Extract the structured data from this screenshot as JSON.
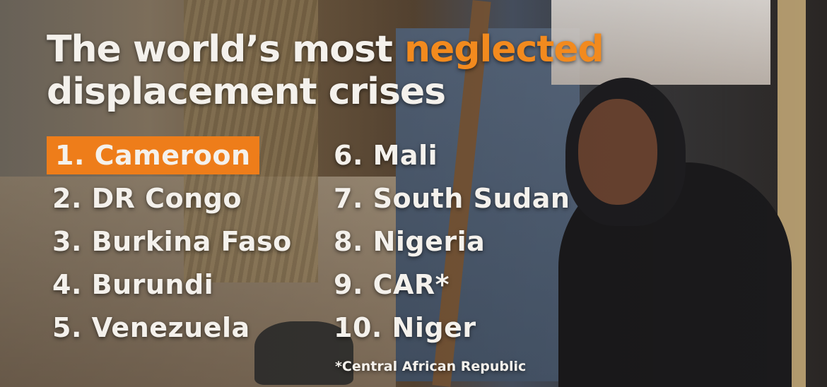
{
  "title": {
    "before": "The world’s most",
    "highlight": "neglected",
    "after": "displacement crises"
  },
  "list": {
    "left": [
      "1. Cameroon",
      "2. DR Congo",
      "3. Burkina Faso",
      "4. Burundi",
      "5. Venezuela"
    ],
    "right": [
      "6. Mali",
      "7. South Sudan",
      "8. Nigeria",
      "9. CAR*",
      "10. Niger"
    ]
  },
  "footnote": "*Central African Republic"
}
